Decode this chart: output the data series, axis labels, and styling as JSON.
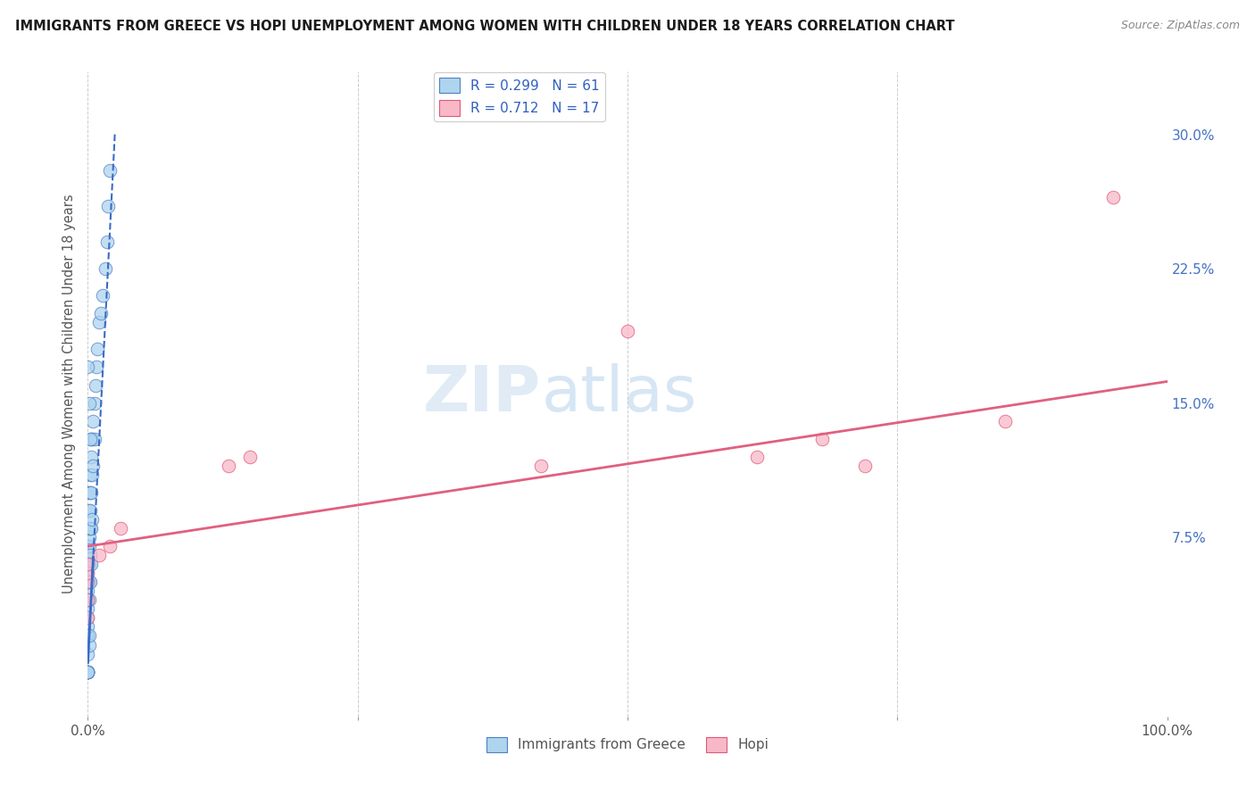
{
  "title": "IMMIGRANTS FROM GREECE VS HOPI UNEMPLOYMENT AMONG WOMEN WITH CHILDREN UNDER 18 YEARS CORRELATION CHART",
  "source": "Source: ZipAtlas.com",
  "ylabel": "Unemployment Among Women with Children Under 18 years",
  "xlim": [
    0.0,
    1.0
  ],
  "ylim": [
    -0.025,
    0.335
  ],
  "xticks": [
    0.0,
    0.25,
    0.5,
    0.75,
    1.0
  ],
  "xtick_labels": [
    "0.0%",
    "",
    "",
    "",
    "100.0%"
  ],
  "ytick_labels": [
    "",
    "7.5%",
    "15.0%",
    "22.5%",
    "30.0%"
  ],
  "yticks": [
    0.0,
    0.075,
    0.15,
    0.225,
    0.3
  ],
  "R_blue": 0.299,
  "N_blue": 61,
  "R_pink": 0.712,
  "N_pink": 17,
  "color_blue": "#AED4F0",
  "color_pink": "#F8B8C8",
  "edge_blue": "#5080C0",
  "edge_pink": "#E05878",
  "trendline_blue_color": "#3A6BC8",
  "trendline_pink_color": "#E06080",
  "blue_scatter_x": [
    0.0,
    0.0,
    0.0,
    0.0,
    0.0,
    0.0,
    0.0,
    0.0,
    0.0,
    0.0,
    0.0,
    0.0,
    0.0,
    0.0,
    0.0,
    0.0,
    0.0,
    0.0,
    0.0,
    0.0,
    0.001,
    0.001,
    0.001,
    0.001,
    0.001,
    0.001,
    0.001,
    0.001,
    0.001,
    0.001,
    0.002,
    0.002,
    0.002,
    0.002,
    0.002,
    0.002,
    0.003,
    0.003,
    0.003,
    0.003,
    0.003,
    0.004,
    0.004,
    0.004,
    0.005,
    0.005,
    0.006,
    0.006,
    0.007,
    0.008,
    0.009,
    0.01,
    0.012,
    0.014,
    0.016,
    0.018,
    0.019,
    0.02,
    0.0,
    0.001,
    0.002
  ],
  "blue_scatter_y": [
    0.0,
    0.0,
    0.0,
    0.0,
    0.0,
    0.0,
    0.0,
    0.02,
    0.02,
    0.025,
    0.03,
    0.035,
    0.04,
    0.045,
    0.05,
    0.055,
    0.06,
    0.065,
    0.07,
    0.01,
    0.015,
    0.02,
    0.04,
    0.05,
    0.06,
    0.07,
    0.075,
    0.08,
    0.09,
    0.1,
    0.05,
    0.065,
    0.08,
    0.09,
    0.1,
    0.11,
    0.06,
    0.08,
    0.1,
    0.12,
    0.13,
    0.085,
    0.11,
    0.13,
    0.115,
    0.14,
    0.13,
    0.15,
    0.16,
    0.17,
    0.18,
    0.195,
    0.2,
    0.21,
    0.225,
    0.24,
    0.26,
    0.28,
    0.17,
    0.15,
    0.13
  ],
  "pink_scatter_x": [
    0.0,
    0.0,
    0.0,
    0.0,
    0.0,
    0.01,
    0.02,
    0.03,
    0.13,
    0.15,
    0.42,
    0.5,
    0.62,
    0.68,
    0.72,
    0.85,
    0.95
  ],
  "pink_scatter_y": [
    0.03,
    0.04,
    0.05,
    0.055,
    0.06,
    0.065,
    0.07,
    0.08,
    0.115,
    0.12,
    0.115,
    0.19,
    0.12,
    0.13,
    0.115,
    0.14,
    0.265
  ],
  "blue_trend_x0": 0.0,
  "blue_trend_x1": 0.025,
  "blue_trend_y0": 0.005,
  "blue_trend_y1": 0.3,
  "pink_trend_x0": 0.0,
  "pink_trend_x1": 1.0,
  "pink_trend_y0": 0.07,
  "pink_trend_y1": 0.162,
  "watermark_zip": "ZIP",
  "watermark_atlas": "atlas"
}
